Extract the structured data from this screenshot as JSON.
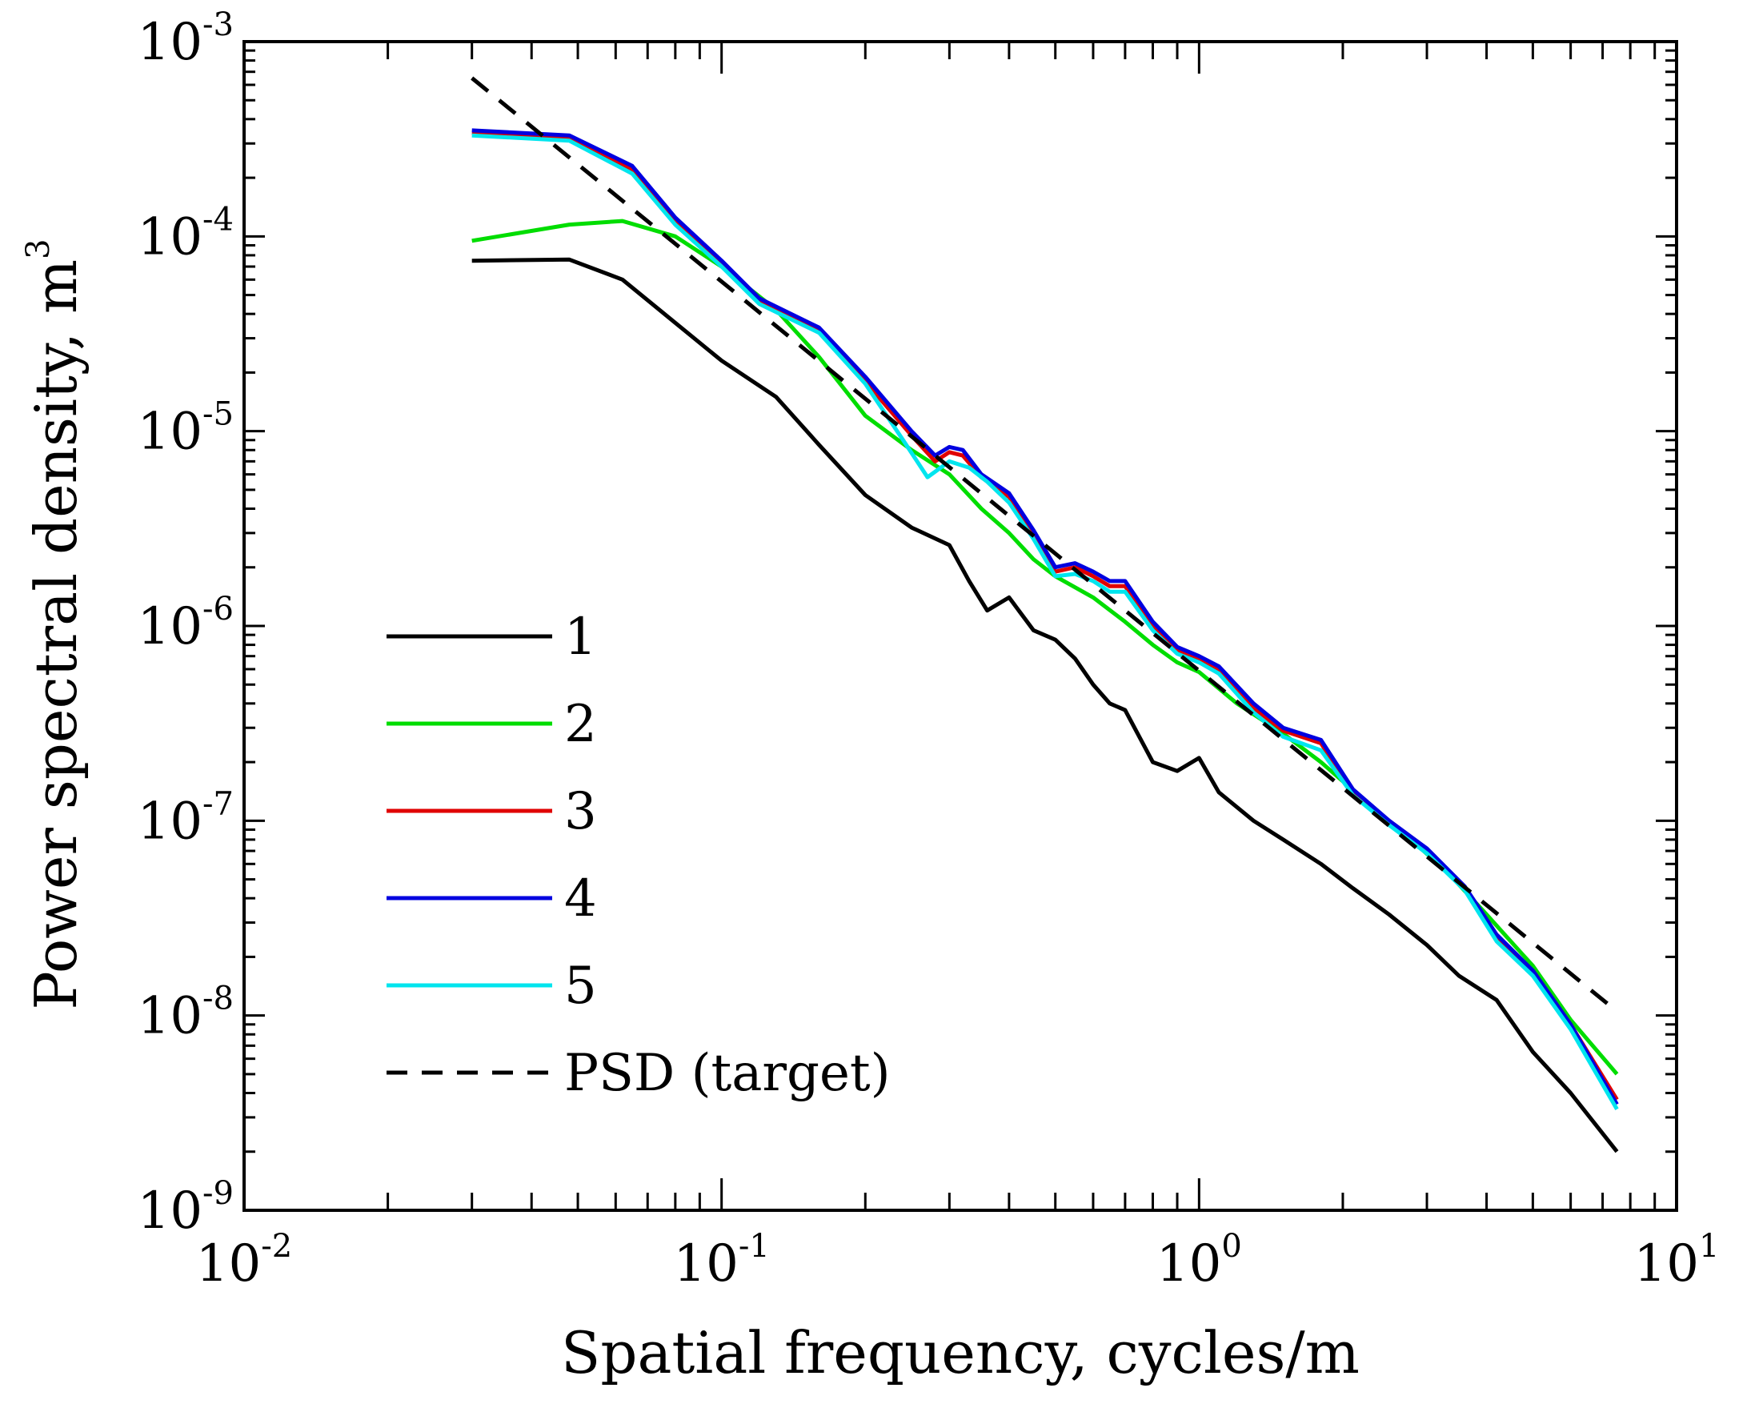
{
  "chart_data": {
    "type": "line",
    "xlabel": "Spatial frequency, cycles/m",
    "ylabel_text": "Power spectral density, m",
    "ylabel_exp": "3",
    "xscale": "log",
    "yscale": "log",
    "xlim": [
      0.01,
      10
    ],
    "ylim": [
      1e-09,
      0.001
    ],
    "x_ticks": [
      {
        "base": "10",
        "exp": "-2",
        "value": 0.01
      },
      {
        "base": "10",
        "exp": "-1",
        "value": 0.1
      },
      {
        "base": "10",
        "exp": "0",
        "value": 1
      },
      {
        "base": "10",
        "exp": "1",
        "value": 10
      }
    ],
    "y_ticks": [
      {
        "base": "10",
        "exp": "-3",
        "value": 0.001
      },
      {
        "base": "10",
        "exp": "-4",
        "value": 0.0001
      },
      {
        "base": "10",
        "exp": "-5",
        "value": 1e-05
      },
      {
        "base": "10",
        "exp": "-6",
        "value": 1e-06
      },
      {
        "base": "10",
        "exp": "-7",
        "value": 1e-07
      },
      {
        "base": "10",
        "exp": "-8",
        "value": 1e-08
      },
      {
        "base": "10",
        "exp": "-9",
        "value": 1e-09
      }
    ],
    "grid": false,
    "legend_position": "lower-left",
    "series": [
      {
        "name": "1",
        "color": "#000000",
        "dash": "solid",
        "x": [
          0.03,
          0.048,
          0.062,
          0.08,
          0.1,
          0.13,
          0.16,
          0.2,
          0.25,
          0.3,
          0.33,
          0.36,
          0.4,
          0.45,
          0.5,
          0.55,
          0.6,
          0.65,
          0.7,
          0.8,
          0.9,
          1.0,
          1.1,
          1.3,
          1.5,
          1.8,
          2.1,
          2.5,
          3.0,
          3.5,
          4.2,
          5.0,
          6.0,
          7.5
        ],
        "y": [
          7.5e-05,
          7.6e-05,
          6e-05,
          3.6e-05,
          2.3e-05,
          1.5e-05,
          8.5e-06,
          4.7e-06,
          3.2e-06,
          2.6e-06,
          1.7e-06,
          1.2e-06,
          1.4e-06,
          9.5e-07,
          8.5e-07,
          6.8e-07,
          5e-07,
          4e-07,
          3.7e-07,
          2e-07,
          1.8e-07,
          2.1e-07,
          1.4e-07,
          1e-07,
          8e-08,
          6e-08,
          4.5e-08,
          3.3e-08,
          2.3e-08,
          1.6e-08,
          1.2e-08,
          6.5e-09,
          4e-09,
          2e-09
        ]
      },
      {
        "name": "2",
        "color": "#00dd00",
        "dash": "solid",
        "x": [
          0.03,
          0.048,
          0.062,
          0.08,
          0.1,
          0.13,
          0.16,
          0.2,
          0.25,
          0.3,
          0.35,
          0.4,
          0.45,
          0.5,
          0.6,
          0.7,
          0.8,
          0.9,
          1.0,
          1.2,
          1.5,
          1.8,
          2.2,
          2.7,
          3.3,
          4.0,
          5.0,
          6.0,
          7.5
        ],
        "y": [
          9.5e-05,
          0.000115,
          0.00012,
          0.0001,
          7e-05,
          4.2e-05,
          2.4e-05,
          1.2e-05,
          8e-06,
          6e-06,
          4e-06,
          3e-06,
          2.2e-06,
          1.8e-06,
          1.4e-06,
          1.05e-06,
          8e-07,
          6.5e-07,
          5.8e-07,
          4e-07,
          2.8e-07,
          2e-07,
          1.3e-07,
          8.5e-08,
          5.5e-08,
          3.3e-08,
          1.8e-08,
          9.5e-09,
          5e-09
        ]
      },
      {
        "name": "3",
        "color": "#e00000",
        "dash": "solid",
        "x": [
          0.03,
          0.048,
          0.065,
          0.08,
          0.1,
          0.12,
          0.16,
          0.2,
          0.25,
          0.28,
          0.3,
          0.32,
          0.35,
          0.4,
          0.45,
          0.5,
          0.55,
          0.6,
          0.65,
          0.7,
          0.8,
          0.9,
          1.0,
          1.1,
          1.3,
          1.5,
          1.8,
          2.1,
          2.5,
          3.0,
          3.6,
          4.2,
          5.0,
          6.0,
          7.5
        ],
        "y": [
          0.00034,
          0.00032,
          0.00022,
          0.00012,
          7.2e-05,
          4.6e-05,
          3.3e-05,
          1.8e-05,
          9.5e-06,
          7e-06,
          7.8e-06,
          7.5e-06,
          5.8e-06,
          4.6e-06,
          3e-06,
          1.9e-06,
          2e-06,
          1.8e-06,
          1.6e-06,
          1.6e-06,
          1e-06,
          7.5e-07,
          6.8e-07,
          6e-07,
          3.8e-07,
          2.9e-07,
          2.5e-07,
          1.4e-07,
          1e-07,
          7e-08,
          4.5e-08,
          2.5e-08,
          1.7e-08,
          9e-09,
          3.7e-09
        ]
      },
      {
        "name": "4",
        "color": "#0000e0",
        "dash": "solid",
        "x": [
          0.03,
          0.048,
          0.065,
          0.08,
          0.1,
          0.12,
          0.16,
          0.2,
          0.25,
          0.28,
          0.3,
          0.32,
          0.35,
          0.4,
          0.45,
          0.5,
          0.55,
          0.6,
          0.65,
          0.7,
          0.8,
          0.9,
          1.0,
          1.1,
          1.3,
          1.5,
          1.8,
          2.1,
          2.5,
          3.0,
          3.6,
          4.2,
          5.0,
          6.0,
          7.5
        ],
        "y": [
          0.00035,
          0.00033,
          0.00023,
          0.000125,
          7.5e-05,
          4.8e-05,
          3.4e-05,
          1.9e-05,
          1e-05,
          7.5e-06,
          8.3e-06,
          8e-06,
          6e-06,
          4.8e-06,
          3.1e-06,
          2e-06,
          2.1e-06,
          1.9e-06,
          1.7e-06,
          1.7e-06,
          1.05e-06,
          7.8e-07,
          7e-07,
          6.2e-07,
          4e-07,
          3e-07,
          2.6e-07,
          1.45e-07,
          1e-07,
          7.2e-08,
          4.6e-08,
          2.6e-08,
          1.7e-08,
          9e-09,
          3.5e-09
        ]
      },
      {
        "name": "5",
        "color": "#00e5ee",
        "dash": "solid",
        "x": [
          0.03,
          0.048,
          0.065,
          0.08,
          0.1,
          0.12,
          0.16,
          0.2,
          0.24,
          0.27,
          0.3,
          0.33,
          0.36,
          0.4,
          0.45,
          0.5,
          0.55,
          0.6,
          0.65,
          0.7,
          0.8,
          0.9,
          1.0,
          1.1,
          1.3,
          1.5,
          1.8,
          2.1,
          2.5,
          3.0,
          3.6,
          4.2,
          5.0,
          6.0,
          7.5
        ],
        "y": [
          0.00033,
          0.00031,
          0.00021,
          0.000115,
          7e-05,
          4.5e-05,
          3.2e-05,
          1.75e-05,
          9e-06,
          5.8e-06,
          7e-06,
          6.5e-06,
          5.5e-06,
          4.3e-06,
          2.8e-06,
          1.8e-06,
          1.85e-06,
          1.7e-06,
          1.5e-06,
          1.5e-06,
          9.5e-07,
          7.2e-07,
          6.5e-07,
          5.7e-07,
          3.6e-07,
          2.7e-07,
          2.3e-07,
          1.35e-07,
          9.5e-08,
          6.8e-08,
          4.4e-08,
          2.4e-08,
          1.6e-08,
          8.5e-09,
          3.3e-09
        ]
      },
      {
        "name": "PSD (target)",
        "color": "#000000",
        "dash": "dashed",
        "x": [
          0.03,
          7.5
        ],
        "y": [
          0.00065,
          1.05e-08
        ]
      }
    ]
  }
}
